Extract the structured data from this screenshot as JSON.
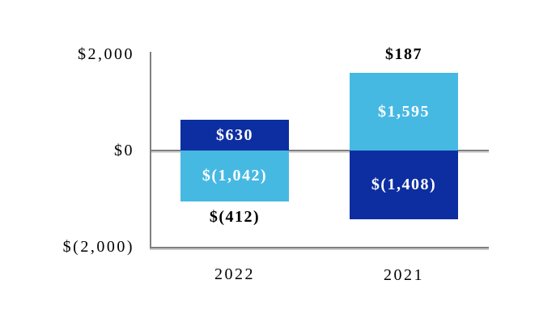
{
  "chart_data": {
    "type": "bar",
    "subtype": "stacked-positive-negative",
    "title": "",
    "xlabel": "",
    "ylabel": "",
    "categories": [
      "2022",
      "2021"
    ],
    "series": [
      {
        "name": "navy-series",
        "color": "#0d2ea0",
        "values": [
          630,
          -1408
        ],
        "labels": [
          "$630",
          "$(1,408)"
        ]
      },
      {
        "name": "sky-series",
        "color": "#46b9e3",
        "values": [
          -1042,
          1595
        ],
        "labels": [
          "$(1,042)",
          "$1,595"
        ]
      }
    ],
    "totals": [
      -412,
      187
    ],
    "total_labels": [
      "$(412)",
      "$187"
    ],
    "y_axis": {
      "ticks": [
        "$2,000",
        "$0",
        "$(2,000)"
      ],
      "tick_values": [
        2000,
        0,
        -2000
      ],
      "ylim": [
        -2000,
        2000
      ]
    },
    "grid": "zero-line-only",
    "legend": "none"
  },
  "colors": {
    "navy": "#0d2ea0",
    "sky": "#46b9e3",
    "axis_gray": "#7f7f7f",
    "background": "#ffffff",
    "label_on_bar": "#ffffff",
    "label_outside": "#000000"
  }
}
